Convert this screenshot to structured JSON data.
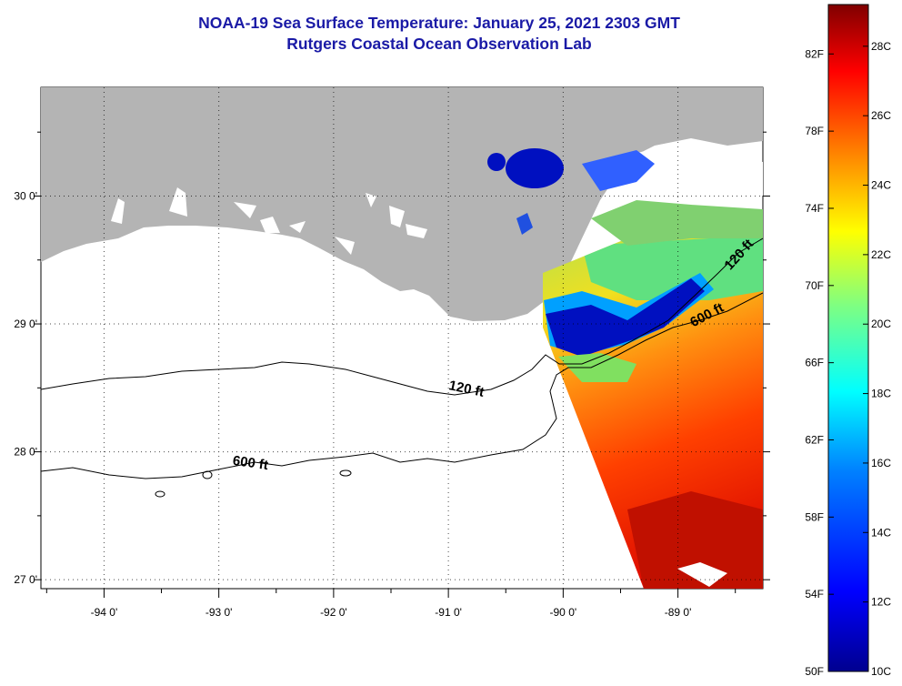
{
  "title": {
    "line1": "NOAA-19 Sea Surface Temperature:  January 25, 2021 2303 GMT",
    "line2": "Rutgers Coastal Ocean Observation Lab"
  },
  "map": {
    "lon_range": [
      -94.55,
      -88.26
    ],
    "lat_range": [
      26.93,
      30.85
    ],
    "lon_ticks": [
      {
        "value": -94,
        "label": "-94 0'"
      },
      {
        "value": -93,
        "label": "-93 0'"
      },
      {
        "value": -92,
        "label": "-92 0'"
      },
      {
        "value": -91,
        "label": "-91 0'"
      },
      {
        "value": -90,
        "label": "-90 0'"
      },
      {
        "value": -89,
        "label": "-89 0'"
      }
    ],
    "lat_ticks": [
      {
        "value": 30,
        "label": "30 0'"
      },
      {
        "value": 29,
        "label": "29 0'"
      },
      {
        "value": 28,
        "label": "28 0'"
      },
      {
        "value": 27,
        "label": "27 0'"
      }
    ],
    "contours": [
      {
        "label": "120 ft",
        "label_lon": -90.85,
        "label_lat": 28.46,
        "label_angle": 12
      },
      {
        "label": "600 ft",
        "label_lon": -92.73,
        "label_lat": 27.88,
        "label_angle": 8
      },
      {
        "label": "120 ft",
        "label_lon": -88.44,
        "label_lat": 29.52,
        "label_angle": -48
      },
      {
        "label": "600 ft",
        "label_lon": -88.73,
        "label_lat": 29.04,
        "label_angle": -28
      }
    ],
    "land_color": "#b4b4b4",
    "water_color": "#ffffff"
  },
  "colorbar": {
    "min_c": 10,
    "max_c": 29.2,
    "fahrenheit_labels": [
      "82F",
      "78F",
      "74F",
      "70F",
      "66F",
      "62F",
      "58F",
      "54F",
      "50F"
    ],
    "celsius_labels": [
      "28C",
      "26C",
      "24C",
      "22C",
      "20C",
      "18C",
      "16C",
      "14C",
      "12C",
      "10C"
    ],
    "colors": [
      "#00008f",
      "#0000ff",
      "#0080ff",
      "#00ffff",
      "#80ff80",
      "#ffff00",
      "#ff8000",
      "#ff0000",
      "#800000"
    ]
  }
}
